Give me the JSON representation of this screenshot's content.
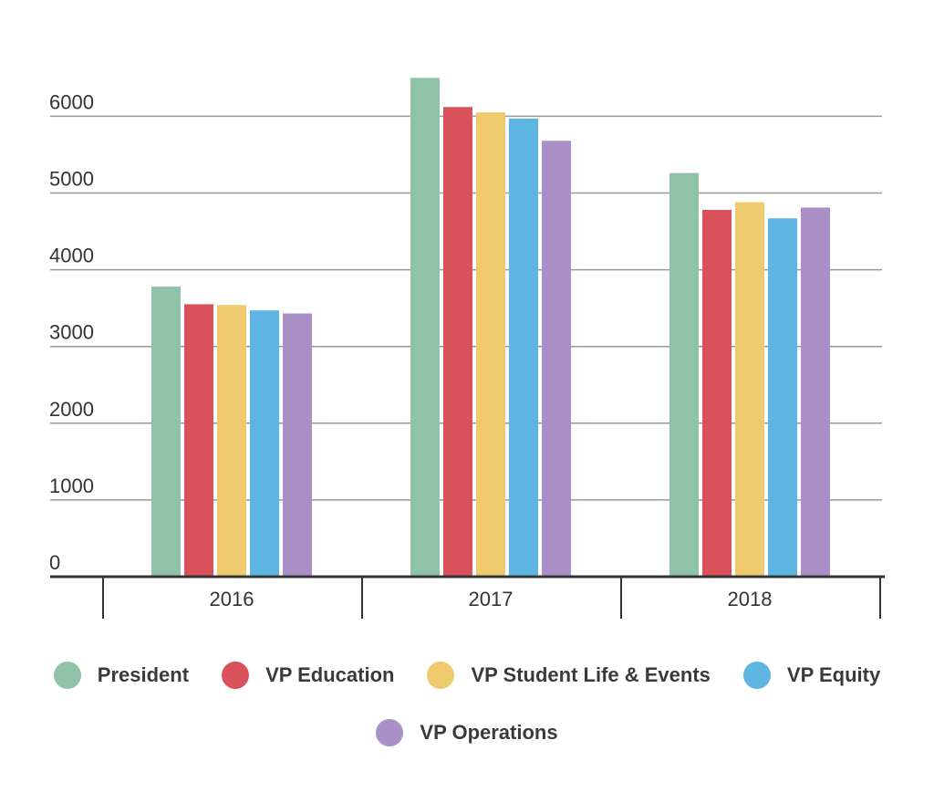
{
  "chart_data": {
    "type": "bar",
    "categories": [
      "2016",
      "2017",
      "2018"
    ],
    "series": [
      {
        "name": "President",
        "color": "#8fc2a7",
        "values": [
          3780,
          6500,
          5260
        ]
      },
      {
        "name": "VP Education",
        "color": "#d9515a",
        "values": [
          3550,
          6120,
          4780
        ]
      },
      {
        "name": "VP Student Life & Events",
        "color": "#efc96d",
        "values": [
          3540,
          6050,
          4880
        ]
      },
      {
        "name": "VP Equity",
        "color": "#5fb5e1",
        "values": [
          3470,
          5970,
          4670
        ]
      },
      {
        "name": "VP Operations",
        "color": "#a990c6",
        "values": [
          3430,
          5680,
          4810
        ]
      }
    ],
    "y_ticks": [
      "0",
      "1000",
      "2000",
      "3000",
      "4000",
      "5000",
      "6000"
    ],
    "ylim": [
      0,
      6500
    ],
    "grid": true,
    "legend_position": "bottom"
  }
}
